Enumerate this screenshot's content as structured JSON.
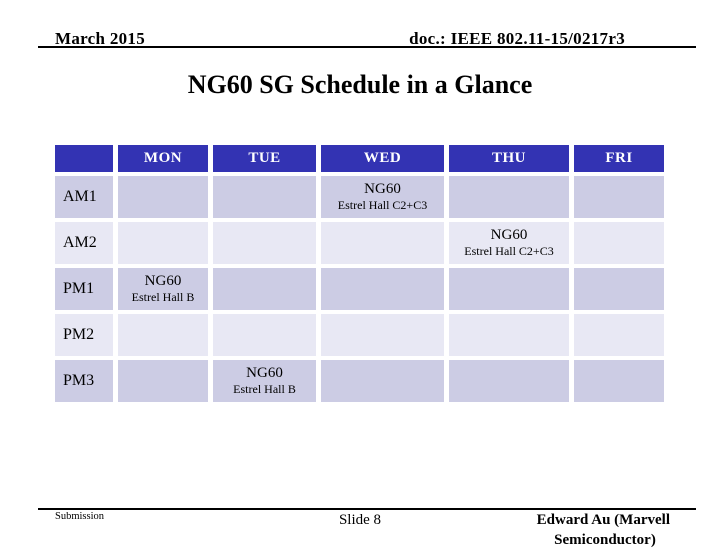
{
  "header": {
    "left": "March 2015",
    "right": "doc.: IEEE 802.11-15/0217r3"
  },
  "title": "NG60 SG Schedule in a Glance",
  "schedule": {
    "columns": [
      "",
      "MON",
      "TUE",
      "WED",
      "THU",
      "FRI"
    ],
    "rows": [
      {
        "label": "AM1",
        "cells": [
          null,
          null,
          {
            "title": "NG60",
            "subtitle": "Estrel Hall C2+C3"
          },
          null,
          null
        ]
      },
      {
        "label": "AM2",
        "cells": [
          null,
          null,
          null,
          {
            "title": "NG60",
            "subtitle": "Estrel Hall C2+C3"
          },
          null
        ]
      },
      {
        "label": "PM1",
        "cells": [
          {
            "title": "NG60",
            "subtitle": "Estrel Hall B"
          },
          null,
          null,
          null,
          null
        ]
      },
      {
        "label": "PM2",
        "cells": [
          null,
          null,
          null,
          null,
          null
        ]
      },
      {
        "label": "PM3",
        "cells": [
          null,
          {
            "title": "NG60",
            "subtitle": "Estrel Hall B"
          },
          null,
          null,
          null
        ]
      }
    ],
    "colors": {
      "header_bg": "#3333b3",
      "header_text": "#ffffff",
      "row_odd_bg": "#cccce4",
      "row_even_bg": "#e8e8f4",
      "cell_text": "#000000"
    }
  },
  "footer": {
    "left": "Submission",
    "center": "Slide 8",
    "right_line1": "Edward Au (Marvell",
    "right_line2": "Semiconductor)"
  }
}
